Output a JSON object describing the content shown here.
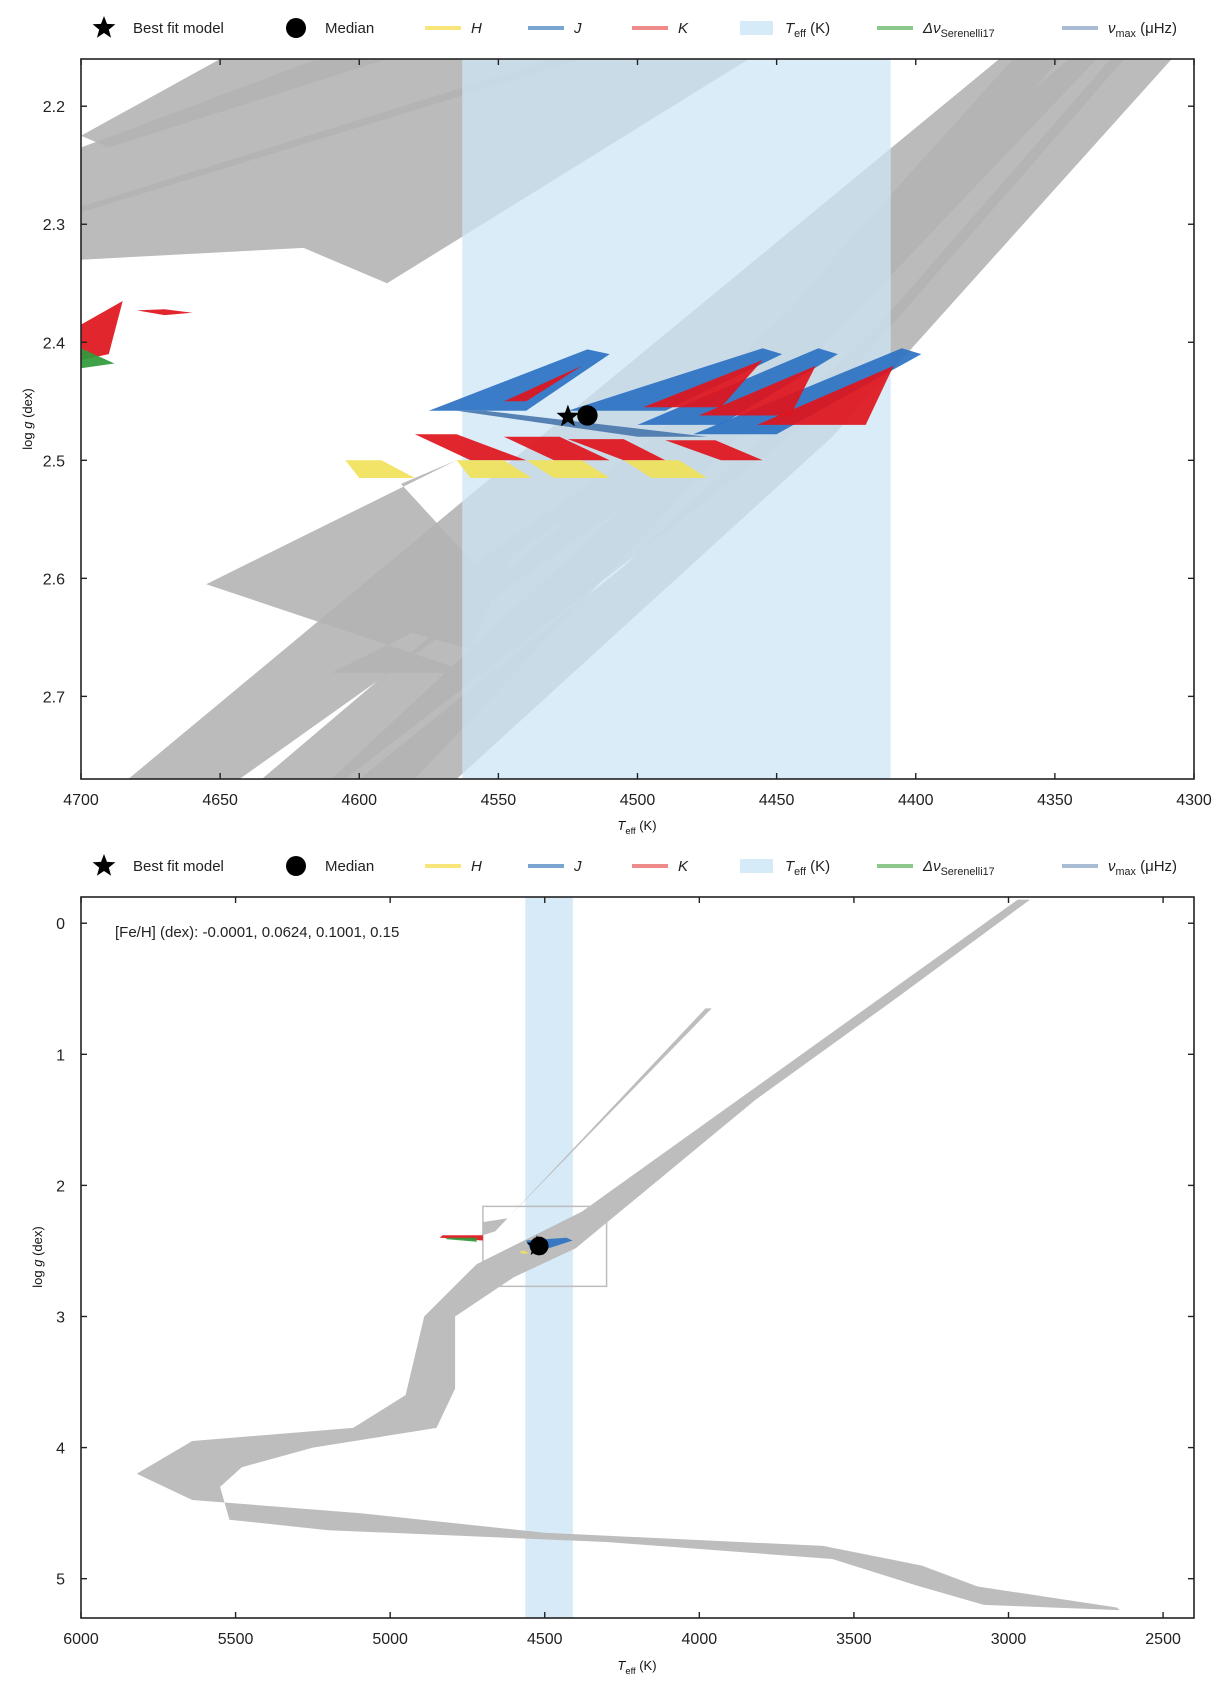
{
  "legend": {
    "items": [
      {
        "key": "best",
        "label": "Best fit model",
        "marker": "star",
        "color": "#000000"
      },
      {
        "key": "median",
        "label": "Median",
        "marker": "circle",
        "color": "#000000"
      },
      {
        "key": "H",
        "label": "H",
        "marker": "line",
        "color": "#f7e57a"
      },
      {
        "key": "J",
        "label": "J",
        "marker": "line",
        "color": "#7aa5d2"
      },
      {
        "key": "K",
        "label": "K",
        "marker": "line",
        "color": "#ee8a8a"
      },
      {
        "key": "teff",
        "label": "T_eff (K)",
        "marker": "band",
        "color": "#d6ebf8"
      },
      {
        "key": "dnu",
        "label": "Δν_Serenelli17",
        "marker": "line",
        "color": "#8cc78c"
      },
      {
        "key": "numax",
        "label": "ν_max (μHz)",
        "marker": "line",
        "color": "#a8bcd4"
      }
    ]
  },
  "chart_data": [
    {
      "type": "scatter",
      "title": "",
      "xlabel": "T_eff (K)",
      "ylabel": "log g (dex)",
      "xlim": [
        4700,
        4300
      ],
      "ylim": [
        2.77,
        2.16
      ],
      "xticks": [
        4700,
        4650,
        4600,
        4550,
        4500,
        4450,
        4400,
        4350,
        4300
      ],
      "yticks": [
        2.2,
        2.3,
        2.4,
        2.5,
        2.6,
        2.7
      ],
      "ytick_labels": [
        "2.2",
        "2.3",
        "2.4",
        "2.5",
        "2.6",
        "2.7"
      ],
      "teff_band": [
        4563,
        4409
      ],
      "best_fit": {
        "x": 4525,
        "y": 2.463
      },
      "median": {
        "x": 4518,
        "y": 2.462
      },
      "tracks": [
        [
          [
            4700,
            2.235
          ],
          [
            4615,
            2.16
          ],
          [
            4520,
            2.16
          ],
          [
            4700,
            2.29
          ]
        ],
        [
          [
            4700,
            2.285
          ],
          [
            4530,
            2.16
          ],
          [
            4460,
            2.16
          ],
          [
            4590,
            2.35
          ],
          [
            4620,
            2.32
          ],
          [
            4700,
            2.33
          ]
        ],
        [
          [
            4650,
            2.16
          ],
          [
            4590,
            2.16
          ],
          [
            4690,
            2.235
          ],
          [
            4700,
            2.225
          ]
        ],
        [
          [
            4683,
            2.77
          ],
          [
            4540,
            2.49
          ],
          [
            4370,
            2.16
          ],
          [
            4348,
            2.16
          ],
          [
            4470,
            2.48
          ],
          [
            4643,
            2.77
          ]
        ],
        [
          [
            4635,
            2.77
          ],
          [
            4530,
            2.56
          ],
          [
            4390,
            2.25
          ],
          [
            4345,
            2.16
          ],
          [
            4325,
            2.16
          ],
          [
            4440,
            2.47
          ],
          [
            4605,
            2.77
          ]
        ],
        [
          [
            4610,
            2.77
          ],
          [
            4510,
            2.55
          ],
          [
            4480,
            2.47
          ],
          [
            4430,
            2.33
          ],
          [
            4365,
            2.16
          ],
          [
            4335,
            2.16
          ],
          [
            4460,
            2.47
          ],
          [
            4580,
            2.77
          ]
        ],
        [
          [
            4600,
            2.77
          ],
          [
            4505,
            2.59
          ],
          [
            4415,
            2.39
          ],
          [
            4330,
            2.16
          ],
          [
            4308,
            2.16
          ],
          [
            4430,
            2.48
          ],
          [
            4565,
            2.77
          ]
        ],
        [
          [
            4655,
            2.605
          ],
          [
            4565,
            2.5
          ],
          [
            4585,
            2.52
          ],
          [
            4550,
            2.61
          ],
          [
            4610,
            2.68
          ],
          [
            4560,
            2.68
          ]
        ],
        [
          [
            4590,
            2.64
          ],
          [
            4530,
            2.54
          ],
          [
            4475,
            2.45
          ],
          [
            4520,
            2.54
          ],
          [
            4545,
            2.58
          ],
          [
            4560,
            2.66
          ]
        ]
      ],
      "fit_regions": [
        {
          "band": "J",
          "color": "#2d72c2",
          "points": [
            [
              4575,
              2.458
            ],
            [
              4518,
              2.406
            ],
            [
              4510,
              2.41
            ],
            [
              4540,
              2.458
            ]
          ]
        },
        {
          "band": "J",
          "color": "#2d72c2",
          "points": [
            [
              4525,
              2.458
            ],
            [
              4455,
              2.405
            ],
            [
              4448,
              2.41
            ],
            [
              4490,
              2.458
            ]
          ]
        },
        {
          "band": "J",
          "color": "#2d72c2",
          "points": [
            [
              4500,
              2.47
            ],
            [
              4435,
              2.405
            ],
            [
              4428,
              2.41
            ],
            [
              4470,
              2.47
            ]
          ]
        },
        {
          "band": "J",
          "color": "#2d72c2",
          "points": [
            [
              4480,
              2.478
            ],
            [
              4405,
              2.405
            ],
            [
              4398,
              2.41
            ],
            [
              4450,
              2.478
            ]
          ]
        },
        {
          "band": "K",
          "color": "#e0141c",
          "points": [
            [
              4548,
              2.45
            ],
            [
              4520,
              2.42
            ],
            [
              4540,
              2.45
            ]
          ]
        },
        {
          "band": "K",
          "color": "#e0141c",
          "points": [
            [
              4498,
              2.455
            ],
            [
              4455,
              2.415
            ],
            [
              4470,
              2.455
            ]
          ]
        },
        {
          "band": "K",
          "color": "#e0141c",
          "points": [
            [
              4478,
              2.462
            ],
            [
              4436,
              2.42
            ],
            [
              4445,
              2.462
            ]
          ]
        },
        {
          "band": "K",
          "color": "#e0141c",
          "points": [
            [
              4457,
              2.47
            ],
            [
              4408,
              2.42
            ],
            [
              4418,
              2.47
            ]
          ]
        },
        {
          "band": "J",
          "color": "#4a78ad",
          "points": [
            [
              4565,
              2.458
            ],
            [
              4555,
              2.458
            ],
            [
              4475,
              2.48
            ],
            [
              4500,
              2.48
            ]
          ]
        },
        {
          "band": "K",
          "color": "#e0141c",
          "points": [
            [
              4580,
              2.478
            ],
            [
              4565,
              2.478
            ],
            [
              4540,
              2.5
            ],
            [
              4560,
              2.5
            ]
          ]
        },
        {
          "band": "H",
          "color": "#f0e25a",
          "points": [
            [
              4605,
              2.5
            ],
            [
              4592,
              2.5
            ],
            [
              4580,
              2.515
            ],
            [
              4600,
              2.515
            ]
          ]
        },
        {
          "band": "K",
          "color": "#e0141c",
          "points": [
            [
              4548,
              2.48
            ],
            [
              4528,
              2.48
            ],
            [
              4510,
              2.5
            ],
            [
              4530,
              2.5
            ]
          ]
        },
        {
          "band": "H",
          "color": "#f0e25a",
          "points": [
            [
              4565,
              2.5
            ],
            [
              4548,
              2.5
            ],
            [
              4538,
              2.515
            ],
            [
              4560,
              2.515
            ]
          ]
        },
        {
          "band": "K",
          "color": "#e0141c",
          "points": [
            [
              4525,
              2.482
            ],
            [
              4505,
              2.482
            ],
            [
              4490,
              2.5
            ],
            [
              4505,
              2.5
            ]
          ]
        },
        {
          "band": "H",
          "color": "#f0e25a",
          "points": [
            [
              4540,
              2.5
            ],
            [
              4520,
              2.5
            ],
            [
              4510,
              2.515
            ],
            [
              4530,
              2.515
            ]
          ]
        },
        {
          "band": "K",
          "color": "#e0141c",
          "points": [
            [
              4490,
              2.483
            ],
            [
              4472,
              2.483
            ],
            [
              4455,
              2.5
            ],
            [
              4470,
              2.5
            ]
          ]
        },
        {
          "band": "H",
          "color": "#f0e25a",
          "points": [
            [
              4505,
              2.5
            ],
            [
              4485,
              2.5
            ],
            [
              4475,
              2.515
            ],
            [
              4495,
              2.515
            ]
          ]
        },
        {
          "band": "K",
          "color": "#e0141c",
          "points": [
            [
              4700,
              2.385
            ],
            [
              4685,
              2.365
            ],
            [
              4690,
              2.41
            ],
            [
              4700,
              2.415
            ]
          ]
        },
        {
          "band": "K",
          "color": "#e0141c",
          "points": [
            [
              4680,
              2.373
            ],
            [
              4670,
              2.372
            ],
            [
              4660,
              2.375
            ],
            [
              4670,
              2.377
            ]
          ]
        },
        {
          "band": "dnu",
          "color": "#2f9a3a",
          "points": [
            [
              4700,
              2.405
            ],
            [
              4688,
              2.418
            ],
            [
              4700,
              2.422
            ]
          ]
        }
      ]
    },
    {
      "type": "scatter",
      "title": "",
      "annotation": "[Fe/H] (dex): -0.0001, 0.0624, 0.1001, 0.15",
      "xlabel": "T_eff (K)",
      "ylabel": "log g (dex)",
      "xlim": [
        6000,
        2400
      ],
      "ylim": [
        5.3,
        -0.2
      ],
      "xticks": [
        6000,
        5500,
        5000,
        4500,
        4000,
        3500,
        3000,
        2500
      ],
      "yticks": [
        0,
        1,
        2,
        3,
        4,
        5
      ],
      "ytick_labels": [
        "0",
        "1",
        "2",
        "3",
        "4",
        "5"
      ],
      "teff_band": [
        4563,
        4409
      ],
      "zoom_box": {
        "x": [
          4700,
          4300
        ],
        "y": [
          2.16,
          2.77
        ]
      },
      "best_fit": {
        "x": 4525,
        "y": 2.463
      },
      "median": {
        "x": 4518,
        "y": 2.462
      },
      "track_outer": [
        [
          3020,
          -0.18
        ],
        [
          2970,
          -0.18
        ],
        [
          4380,
          2.2
        ],
        [
          4720,
          2.6
        ],
        [
          4890,
          3.0
        ],
        [
          4950,
          3.6
        ],
        [
          5120,
          3.85
        ],
        [
          5640,
          3.95
        ],
        [
          5820,
          4.2
        ],
        [
          5640,
          4.4
        ],
        [
          5100,
          4.5
        ],
        [
          4500,
          4.65
        ],
        [
          3600,
          4.75
        ],
        [
          3280,
          4.9
        ],
        [
          3100,
          5.06
        ],
        [
          2650,
          5.22
        ],
        [
          2640,
          5.24
        ],
        [
          3080,
          5.2
        ],
        [
          3300,
          5.05
        ],
        [
          3570,
          4.85
        ],
        [
          4300,
          4.72
        ],
        [
          5200,
          4.63
        ],
        [
          5520,
          4.55
        ],
        [
          5550,
          4.3
        ],
        [
          5480,
          4.15
        ],
        [
          5250,
          4.0
        ],
        [
          4850,
          3.85
        ],
        [
          4790,
          3.55
        ],
        [
          4790,
          3.0
        ],
        [
          4600,
          2.7
        ],
        [
          4400,
          2.48
        ],
        [
          3820,
          1.35
        ],
        [
          3350,
          0.55
        ],
        [
          2930,
          -0.18
        ]
      ],
      "track_branch": [
        [
          4700,
          2.38
        ],
        [
          4660,
          2.35
        ],
        [
          3980,
          0.65
        ],
        [
          3960,
          0.65
        ],
        [
          4620,
          2.25
        ],
        [
          4700,
          2.28
        ]
      ],
      "fit_regions": [
        {
          "band": "K",
          "color": "#e0141c",
          "points": [
            [
              4840,
              2.4
            ],
            [
              4830,
              2.38
            ],
            [
              4700,
              2.38
            ],
            [
              4700,
              2.42
            ]
          ]
        },
        {
          "band": "dnu",
          "color": "#2f9a3a",
          "points": [
            [
              4820,
              2.41
            ],
            [
              4815,
              2.4
            ],
            [
              4720,
              2.4
            ],
            [
              4720,
              2.43
            ]
          ]
        },
        {
          "band": "J",
          "color": "#2d72c2",
          "points": [
            [
              4560,
              2.42
            ],
            [
              4430,
              2.4
            ],
            [
              4410,
              2.42
            ],
            [
              4540,
              2.52
            ]
          ]
        },
        {
          "band": "H",
          "color": "#f0e25a",
          "points": [
            [
              4580,
              2.5
            ],
            [
              4565,
              2.5
            ],
            [
              4550,
              2.52
            ],
            [
              4575,
              2.52
            ]
          ]
        }
      ]
    }
  ]
}
